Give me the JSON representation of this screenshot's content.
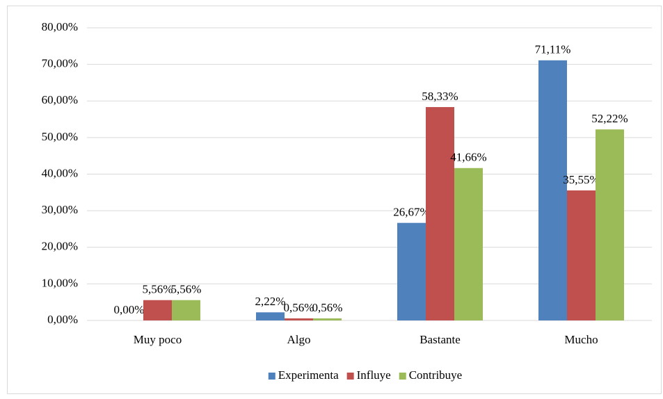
{
  "chart_data": {
    "type": "bar",
    "categories": [
      "Muy poco",
      "Algo",
      "Bastante",
      "Mucho"
    ],
    "series": [
      {
        "name": "Experimenta",
        "color": "#4f81bd",
        "values": [
          0,
          2.22,
          26.67,
          71.11
        ],
        "value_labels": [
          "0,00%",
          "2,22%",
          "26,67%",
          "71,11%"
        ]
      },
      {
        "name": "Influye",
        "color": "#c0504d",
        "values": [
          5.56,
          0.56,
          58.33,
          35.55
        ],
        "value_labels": [
          "5,56%",
          "0,56%",
          "58,33%",
          "35,55%"
        ]
      },
      {
        "name": "Contribuye",
        "color": "#9bbb59",
        "values": [
          5.56,
          0.56,
          41.66,
          52.22
        ],
        "value_labels": [
          "5,56%",
          "0,56%",
          "41,66%",
          "52,22%"
        ]
      }
    ],
    "ylim": [
      0,
      80
    ],
    "yticks": [
      {
        "value": 0,
        "label": "0,00%"
      },
      {
        "value": 10,
        "label": "10,00%"
      },
      {
        "value": 20,
        "label": "20,00%"
      },
      {
        "value": 30,
        "label": "30,00%"
      },
      {
        "value": 40,
        "label": "40,00%"
      },
      {
        "value": 50,
        "label": "50,00%"
      },
      {
        "value": 60,
        "label": "60,00%"
      },
      {
        "value": 70,
        "label": "70,00%"
      },
      {
        "value": 80,
        "label": "80,00%"
      }
    ],
    "grid": true,
    "legend": "bottom"
  }
}
